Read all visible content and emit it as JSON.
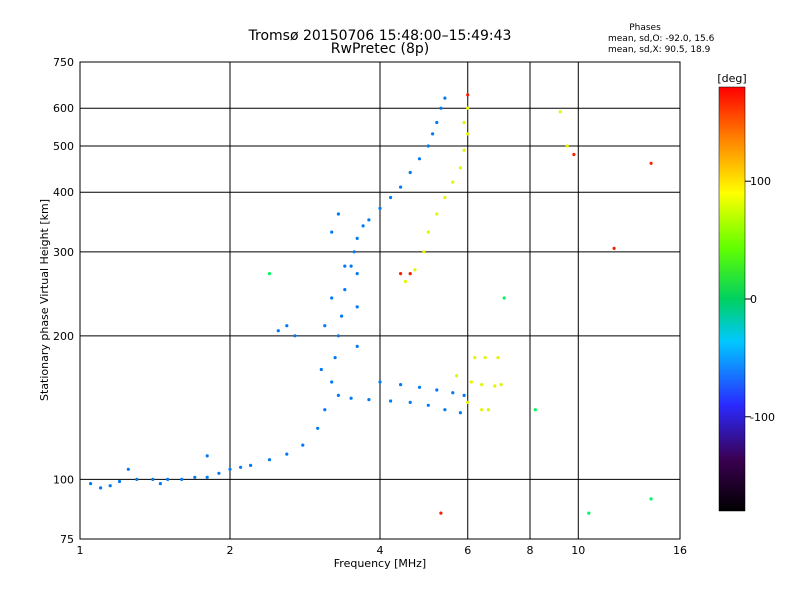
{
  "chart_data": {
    "type": "scatter",
    "title": "Tromsø 20150706 15:48:00–15:49:43",
    "subtitle": "RwPretec (8p)",
    "xlabel": "Frequency [MHz]",
    "ylabel": "Stationary phase Virtual Height [km]",
    "x_scale": "log",
    "y_scale": "log",
    "xlim": [
      1,
      16
    ],
    "ylim": [
      75,
      750
    ],
    "x_ticks": [
      1,
      2,
      4,
      6,
      8,
      10,
      16
    ],
    "y_ticks": [
      75,
      100,
      200,
      300,
      400,
      500,
      600,
      750
    ],
    "grid": true,
    "colorbar": {
      "label": "[deg]",
      "range": [
        -180,
        180
      ],
      "ticks": [
        100,
        0,
        -100
      ]
    },
    "stats": {
      "heading": "Phases",
      "line_o": "mean, sd,O:  -92.0, 15.6",
      "line_x": "mean, sd,X:   90.5, 18.9"
    },
    "series": [
      {
        "name": "",
        "phase": -100,
        "points": [
          [
            1.05,
            98
          ],
          [
            1.1,
            96
          ],
          [
            1.15,
            97
          ],
          [
            1.2,
            99
          ],
          [
            1.3,
            100
          ],
          [
            1.4,
            100
          ],
          [
            1.5,
            100
          ],
          [
            1.6,
            100
          ],
          [
            1.7,
            101
          ],
          [
            1.8,
            101
          ],
          [
            1.9,
            103
          ],
          [
            2.0,
            105
          ],
          [
            2.1,
            106
          ],
          [
            2.2,
            107
          ],
          [
            2.4,
            110
          ],
          [
            2.6,
            113
          ],
          [
            2.8,
            118
          ],
          [
            3.0,
            128
          ],
          [
            3.1,
            140
          ],
          [
            3.2,
            160
          ],
          [
            3.25,
            180
          ],
          [
            3.3,
            200
          ],
          [
            3.35,
            220
          ],
          [
            3.4,
            250
          ],
          [
            3.5,
            280
          ],
          [
            3.55,
            300
          ],
          [
            3.6,
            320
          ],
          [
            3.7,
            340
          ],
          [
            3.8,
            350
          ],
          [
            4.0,
            370
          ],
          [
            4.2,
            390
          ],
          [
            4.4,
            410
          ],
          [
            4.6,
            440
          ],
          [
            4.8,
            470
          ],
          [
            5.0,
            500
          ],
          [
            5.1,
            530
          ],
          [
            5.2,
            560
          ],
          [
            5.3,
            600
          ],
          [
            5.4,
            630
          ],
          [
            3.3,
            150
          ],
          [
            3.5,
            148
          ],
          [
            3.8,
            147
          ],
          [
            4.2,
            146
          ],
          [
            4.6,
            145
          ],
          [
            5.0,
            143
          ],
          [
            5.4,
            140
          ],
          [
            5.8,
            138
          ],
          [
            4.0,
            160
          ],
          [
            4.4,
            158
          ],
          [
            4.8,
            156
          ],
          [
            5.2,
            154
          ],
          [
            5.6,
            152
          ],
          [
            5.9,
            150
          ],
          [
            3.6,
            190
          ],
          [
            3.6,
            230
          ],
          [
            3.6,
            270
          ],
          [
            3.2,
            330
          ],
          [
            3.3,
            360
          ],
          [
            3.4,
            280
          ],
          [
            3.1,
            210
          ],
          [
            3.2,
            240
          ],
          [
            3.05,
            170
          ],
          [
            2.5,
            205
          ],
          [
            2.6,
            210
          ],
          [
            2.7,
            200
          ],
          [
            1.25,
            105
          ],
          [
            1.45,
            98
          ],
          [
            1.8,
            112
          ]
        ]
      },
      {
        "name": "",
        "phase": 95,
        "points": [
          [
            4.5,
            260
          ],
          [
            4.7,
            275
          ],
          [
            4.9,
            300
          ],
          [
            5.0,
            330
          ],
          [
            5.2,
            360
          ],
          [
            5.4,
            390
          ],
          [
            5.6,
            420
          ],
          [
            5.8,
            450
          ],
          [
            5.9,
            490
          ],
          [
            6.0,
            530
          ],
          [
            6.0,
            600
          ],
          [
            5.9,
            560
          ],
          [
            6.1,
            160
          ],
          [
            6.4,
            158
          ],
          [
            6.8,
            157
          ],
          [
            7.0,
            158
          ],
          [
            6.2,
            180
          ],
          [
            6.5,
            180
          ],
          [
            6.9,
            180
          ],
          [
            5.7,
            165
          ],
          [
            6.0,
            145
          ],
          [
            6.4,
            140
          ],
          [
            6.6,
            140
          ],
          [
            9.2,
            590
          ],
          [
            9.5,
            500
          ]
        ]
      },
      {
        "name": "",
        "phase": 170,
        "points": [
          [
            4.4,
            270
          ],
          [
            4.6,
            270
          ],
          [
            6.0,
            640
          ],
          [
            9.8,
            480
          ],
          [
            11.8,
            305
          ],
          [
            14.0,
            460
          ],
          [
            5.3,
            85
          ]
        ]
      },
      {
        "name": "",
        "phase": -10,
        "points": [
          [
            2.4,
            270
          ],
          [
            7.1,
            240
          ],
          [
            8.2,
            140
          ],
          [
            10.5,
            85
          ],
          [
            14.0,
            91
          ]
        ]
      }
    ]
  }
}
